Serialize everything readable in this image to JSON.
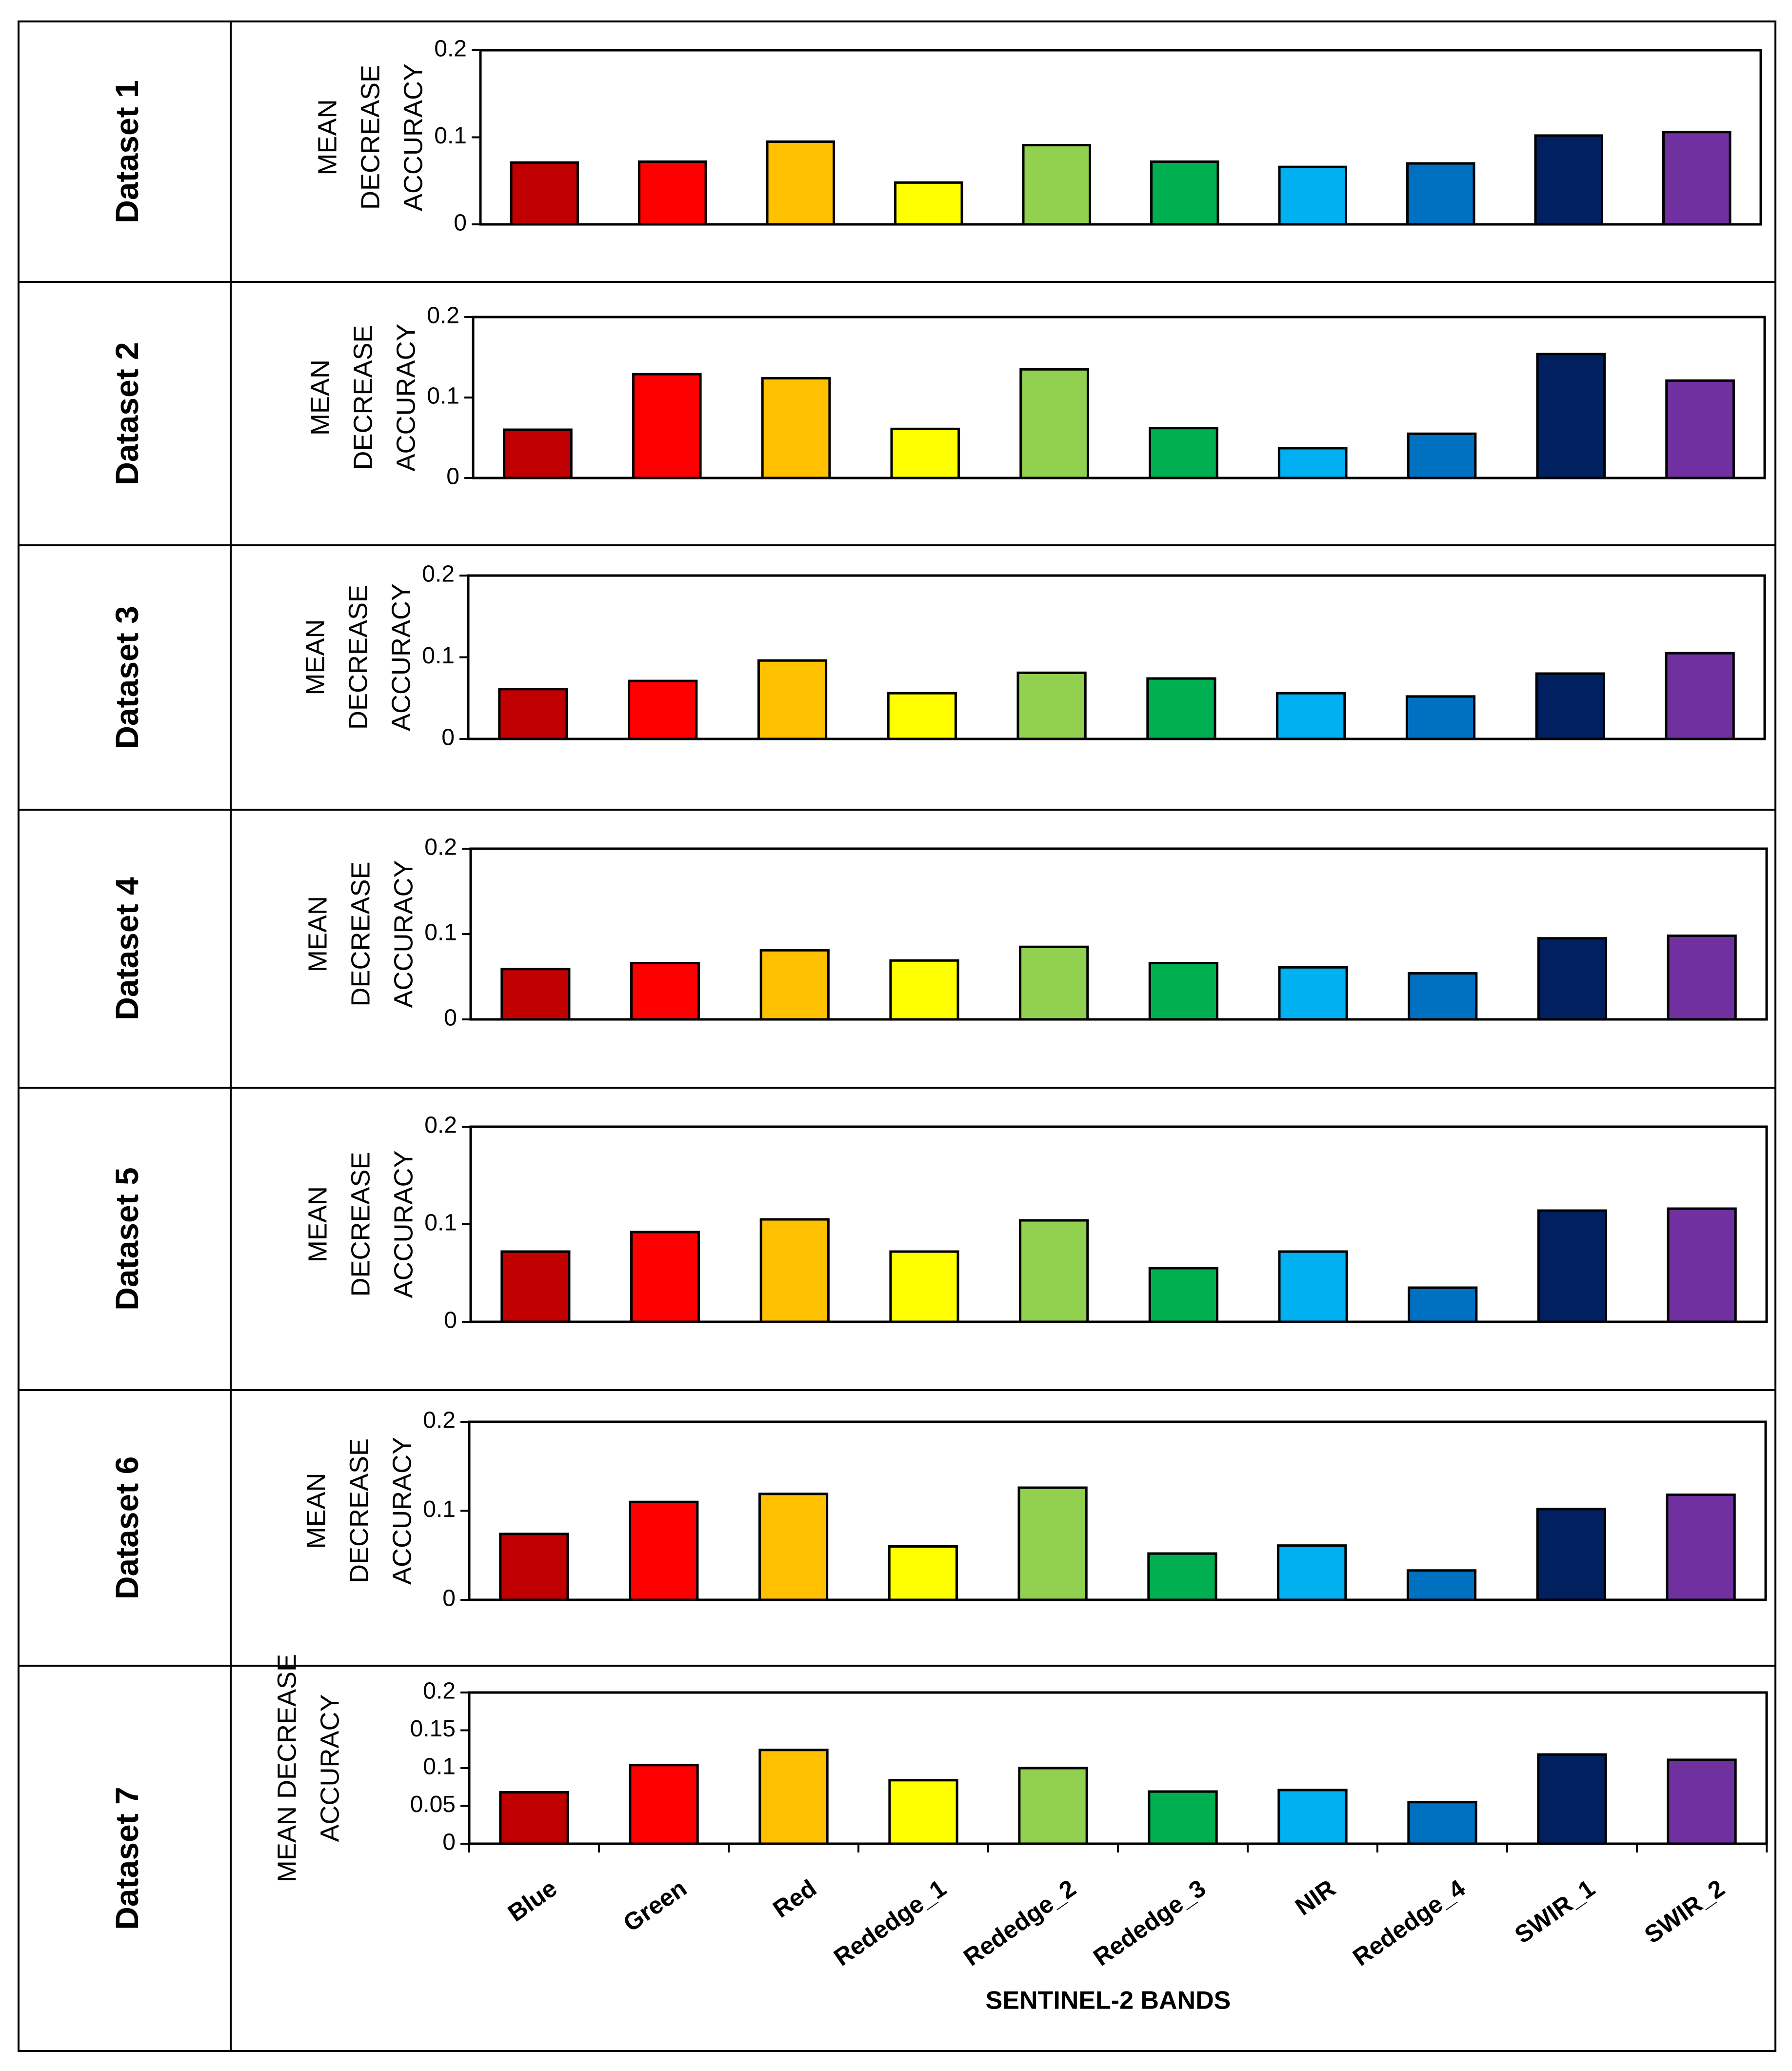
{
  "xlabel": "SENTINEL-2 BANDS",
  "categories": [
    "Blue",
    "Green",
    "Red",
    "Rededge_1",
    "Rededge_2",
    "Rededge_3",
    "NIR",
    "Rededge_4",
    "SWIR_1",
    "SWIR_2"
  ],
  "bar_colors": [
    "#C00000",
    "#FF0000",
    "#FFC000",
    "#FFFF00",
    "#92D050",
    "#00B050",
    "#00B0F0",
    "#0070C0",
    "#002060",
    "#7030A0"
  ],
  "chart_data": [
    {
      "type": "bar",
      "row_label": "Dataset  1",
      "ylabel": "MEAN DECREASE ACCURACY",
      "ylabel_lines": [
        "MEAN",
        "DECREASE",
        "ACCURACY"
      ],
      "ylim": [
        0,
        0.2
      ],
      "yticks": [
        0,
        0.1,
        0.2
      ],
      "ytick_labels": [
        "0",
        "0.1",
        "0.2"
      ],
      "values": [
        0.071,
        0.072,
        0.095,
        0.048,
        0.091,
        0.072,
        0.066,
        0.07,
        0.102,
        0.106
      ]
    },
    {
      "type": "bar",
      "row_label": "Dataset  2",
      "ylabel": "MEAN DECREASE ACCURACY",
      "ylabel_lines": [
        "MEAN",
        "DECREASE",
        "ACCURACY"
      ],
      "ylim": [
        0,
        0.2
      ],
      "yticks": [
        0,
        0.1,
        0.2
      ],
      "ytick_labels": [
        "0",
        "0.1",
        "0.2"
      ],
      "values": [
        0.06,
        0.129,
        0.124,
        0.061,
        0.135,
        0.062,
        0.037,
        0.055,
        0.154,
        0.121
      ]
    },
    {
      "type": "bar",
      "row_label": "Dataset  3",
      "ylabel": "MEAN DECREASE ACCURACY",
      "ylabel_lines": [
        "MEAN",
        "DECREASE",
        "ACCURACY"
      ],
      "ylim": [
        0,
        0.2
      ],
      "yticks": [
        0,
        0.1,
        0.2
      ],
      "ytick_labels": [
        "0",
        "0.1",
        "0.2"
      ],
      "values": [
        0.061,
        0.071,
        0.096,
        0.056,
        0.081,
        0.074,
        0.056,
        0.052,
        0.08,
        0.105
      ]
    },
    {
      "type": "bar",
      "row_label": "Dataset  4",
      "ylabel": "MEAN DECREASE ACCURACY",
      "ylabel_lines": [
        "MEAN",
        "DECREASE",
        "ACCURACY"
      ],
      "ylim": [
        0,
        0.2
      ],
      "yticks": [
        0,
        0.1,
        0.2
      ],
      "ytick_labels": [
        "0",
        "0.1",
        "0.2"
      ],
      "values": [
        0.059,
        0.066,
        0.081,
        0.069,
        0.085,
        0.066,
        0.061,
        0.054,
        0.095,
        0.098
      ]
    },
    {
      "type": "bar",
      "row_label": "Dataset  5",
      "ylabel": "MEAN DECREASE ACCURACY",
      "ylabel_lines": [
        "MEAN",
        "DECREASE",
        "ACCURACY"
      ],
      "ylim": [
        0,
        0.2
      ],
      "yticks": [
        0,
        0.1,
        0.2
      ],
      "ytick_labels": [
        "0",
        "0.1",
        "0.2"
      ],
      "values": [
        0.072,
        0.092,
        0.105,
        0.072,
        0.104,
        0.055,
        0.072,
        0.035,
        0.114,
        0.116
      ]
    },
    {
      "type": "bar",
      "row_label": "Dataset  6",
      "ylabel": "MEAN DECREASE ACCURACY",
      "ylabel_lines": [
        "MEAN",
        "DECREASE",
        "ACCURACY"
      ],
      "ylim": [
        0,
        0.2
      ],
      "yticks": [
        0,
        0.1,
        0.2
      ],
      "ytick_labels": [
        "0",
        "0.1",
        "0.2"
      ],
      "values": [
        0.074,
        0.11,
        0.119,
        0.06,
        0.126,
        0.052,
        0.061,
        0.033,
        0.102,
        0.118
      ]
    },
    {
      "type": "bar",
      "row_label": "Dataset  7",
      "ylabel": "MEAN DECREASE ACCURACY",
      "ylabel_lines": [
        "MEAN DECREASE",
        "ACCURACY"
      ],
      "ylim": [
        0,
        0.2
      ],
      "yticks": [
        0,
        0.05,
        0.1,
        0.15,
        0.2
      ],
      "ytick_labels": [
        "0",
        "0.05",
        "0.1",
        "0.15",
        "0.2"
      ],
      "values": [
        0.068,
        0.104,
        0.124,
        0.084,
        0.1,
        0.069,
        0.071,
        0.055,
        0.118,
        0.111
      ]
    }
  ]
}
